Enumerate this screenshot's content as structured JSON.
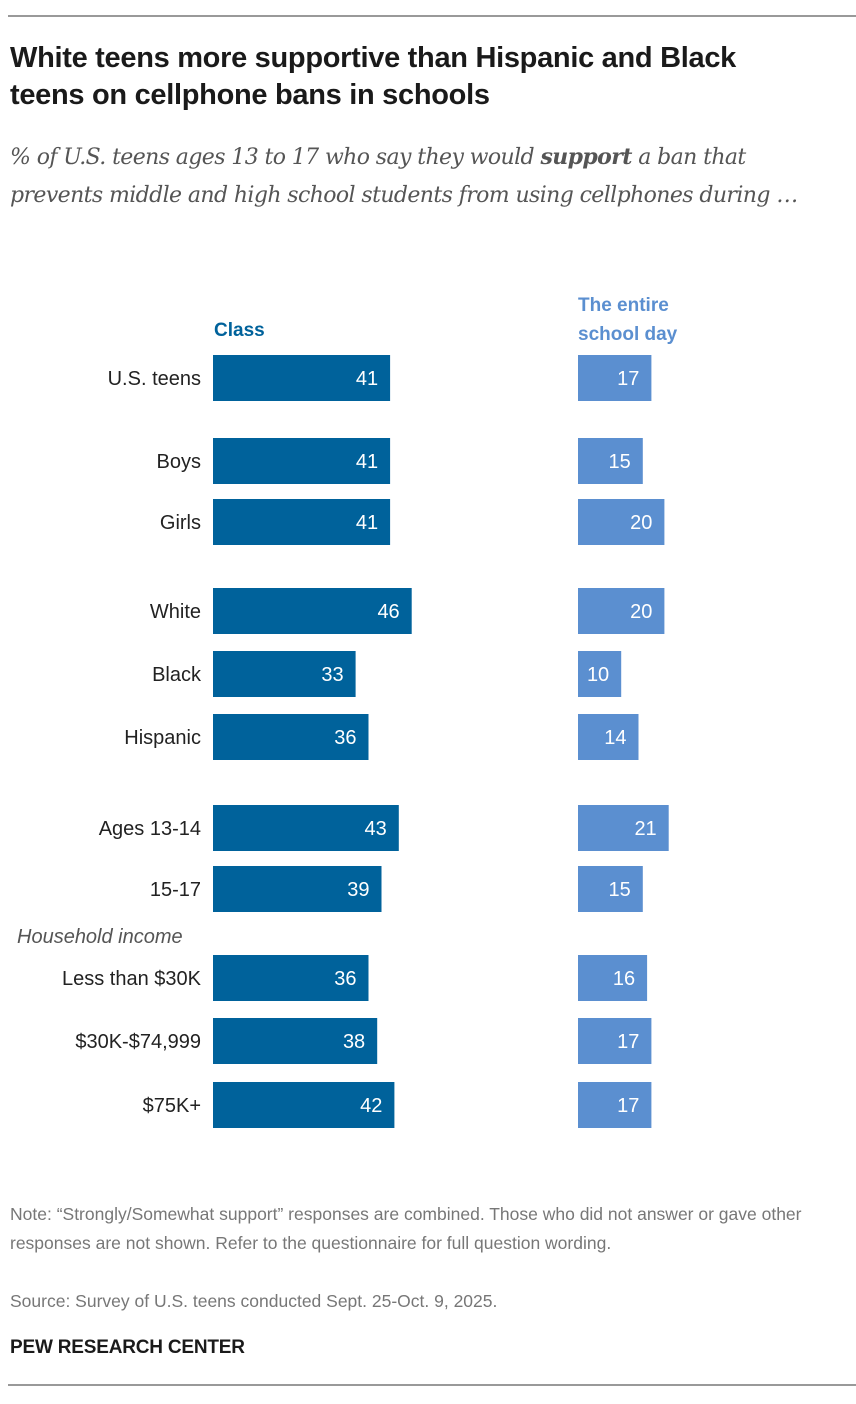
{
  "header": {
    "title": "White teens more supportive than Hispanic and Black teens on cellphone bans in schools",
    "subtitle_pre": "% of U.S. teens ages 13 to 17 who say they would ",
    "subtitle_bold": "support",
    "subtitle_post": " a ban that prevents middle and high school students from using cellphones during …"
  },
  "footer": {
    "note": "Note: “Strongly/Somewhat support” responses are combined. Those who did not answer or gave other responses are not shown. Refer to the questionnaire for full question wording.",
    "source": "Source: Survey of U.S. teens conducted Sept. 25-Oct. 9, 2025.",
    "brand": "PEW RESEARCH CENTER"
  },
  "colors": {
    "class": "#00629B",
    "school_day": "#5B8FD0"
  },
  "chart_data": {
    "type": "bar",
    "orientation": "horizontal",
    "title": "White teens more supportive than Hispanic and Black teens on cellphone bans in schools",
    "subtitle": "% of U.S. teens ages 13 to 17 who say they would support a ban that prevents middle and high school students from using cellphones during …",
    "xlabel": "",
    "ylabel": "",
    "grid": false,
    "legend": "column headers above each bar column",
    "group_labels": [
      {
        "label": "Household income",
        "before_index": 8
      }
    ],
    "categories": [
      "U.S. teens",
      "Boys",
      "Girls",
      "White",
      "Black",
      "Hispanic",
      "Ages 13-14",
      "15-17",
      "Less than $30K",
      "$30K-$74,999",
      "$75K+"
    ],
    "groups": [
      0,
      1,
      1,
      2,
      2,
      2,
      3,
      3,
      4,
      4,
      4
    ],
    "series": [
      {
        "name": "Class",
        "values": [
          41,
          41,
          41,
          46,
          33,
          36,
          43,
          39,
          36,
          38,
          42
        ]
      },
      {
        "name": "The entire school day",
        "values": [
          17,
          15,
          20,
          20,
          10,
          14,
          21,
          15,
          16,
          17,
          17
        ]
      }
    ],
    "series_headers": [
      {
        "lines": [
          "Class"
        ]
      },
      {
        "lines": [
          "The entire",
          "school day"
        ]
      }
    ]
  }
}
